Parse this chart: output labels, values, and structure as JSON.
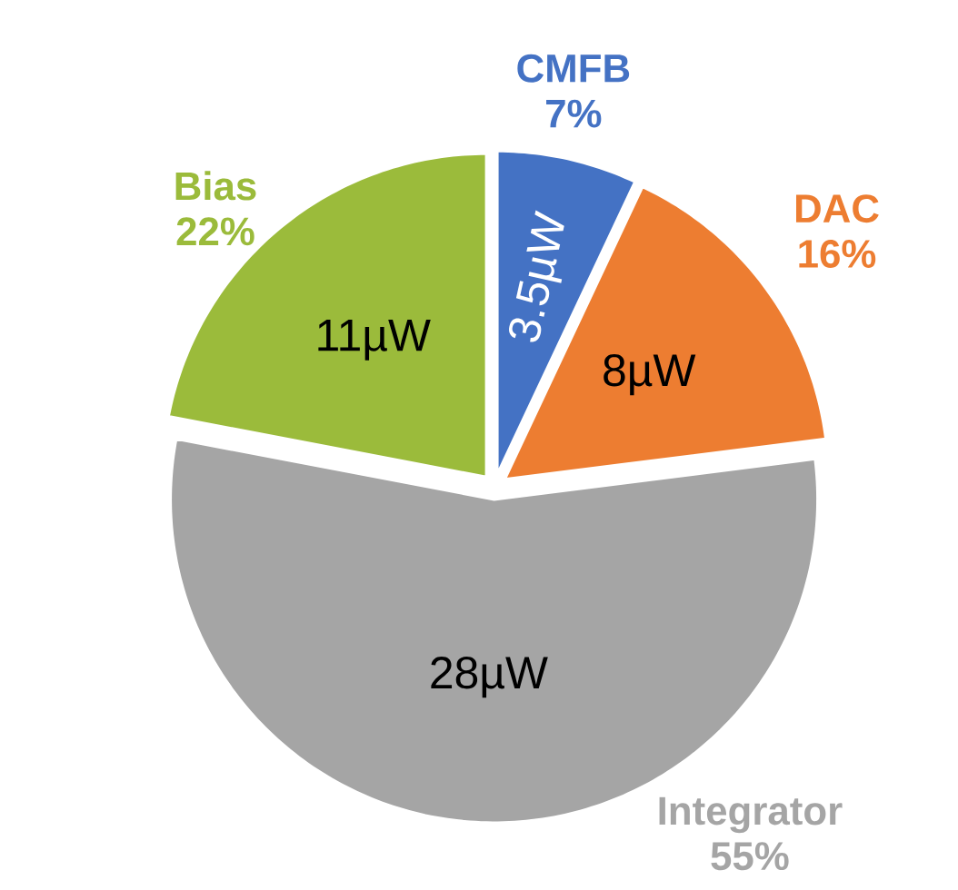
{
  "chart_data": {
    "type": "pie",
    "categories": [
      "CMFB",
      "DAC",
      "Integrator",
      "Bias"
    ],
    "values": [
      7,
      16,
      55,
      22
    ],
    "value_labels": [
      "7%",
      "16%",
      "55%",
      "22%"
    ],
    "colors": [
      "#4472c4",
      "#ed7d31",
      "#a5a5a5",
      "#9bbb3b"
    ],
    "annotations": [
      "3.5µW",
      "8µW",
      "28µW",
      "11µW"
    ]
  }
}
